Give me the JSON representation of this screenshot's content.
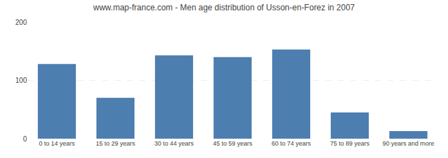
{
  "chart_data": {
    "type": "bar",
    "title": "www.map-france.com - Men age distribution of Usson-en-Forez in 2007",
    "categories": [
      "0 to 14 years",
      "15 to 29 years",
      "30 to 44 years",
      "45 to 59 years",
      "60 to 74 years",
      "75 to 89 years",
      "90 years and more"
    ],
    "values": [
      128,
      70,
      143,
      140,
      153,
      45,
      13
    ],
    "color": "#4d7eb0",
    "ylim": [
      0,
      200
    ],
    "yticks": [
      0,
      100,
      200
    ],
    "grid": true
  }
}
